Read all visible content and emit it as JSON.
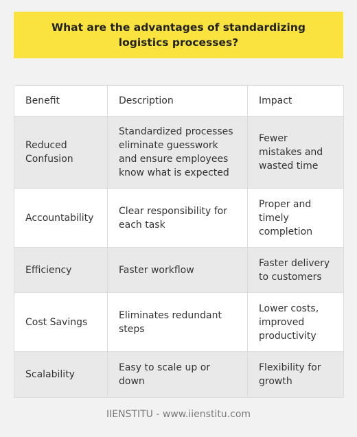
{
  "title": "What are the advantages of standardizing logistics processes?",
  "table": {
    "headers": [
      "Benefit",
      "Description",
      "Impact"
    ],
    "rows": [
      {
        "benefit": "Reduced Confusion",
        "description": "Standardized processes eliminate guesswork and ensure employees know what is expected",
        "impact": "Fewer mistakes and wasted time"
      },
      {
        "benefit": "Accountability",
        "description": "Clear responsibility for each task",
        "impact": "Proper and timely completion"
      },
      {
        "benefit": "Efficiency",
        "description": "Faster workflow",
        "impact": "Faster delivery to customers"
      },
      {
        "benefit": "Cost Savings",
        "description": "Eliminates redundant steps",
        "impact": "Lower costs, improved productivity"
      },
      {
        "benefit": "Scalability",
        "description": "Easy to scale up or down",
        "impact": "Flexibility for growth"
      }
    ]
  },
  "footer": "IIENSTITU - www.iienstitu.com",
  "colors": {
    "banner": "#fbe33f",
    "background": "#f2f2f2",
    "row_alt": "#e9e9e9"
  }
}
